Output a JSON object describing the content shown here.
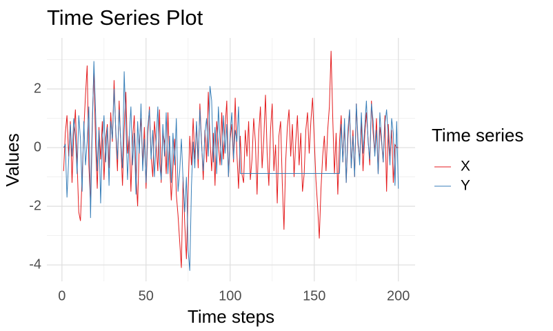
{
  "chart_data": {
    "type": "line",
    "title": "Time Series Plot",
    "x_label": "Time steps",
    "y_label": "Values",
    "legend_title": "Time series",
    "legend": "right",
    "grid": true,
    "xlim": [
      -8.95,
      209.95
    ],
    "ylim": [
      -4.56,
      3.74
    ],
    "xticks": [
      0,
      50,
      100,
      150,
      200
    ],
    "yticks": [
      -4,
      -2,
      0,
      2
    ],
    "x": [
      1,
      2,
      3,
      4,
      5,
      6,
      7,
      8,
      9,
      10,
      11,
      12,
      13,
      14,
      15,
      16,
      17,
      18,
      19,
      20,
      21,
      22,
      23,
      24,
      25,
      26,
      27,
      28,
      29,
      30,
      31,
      32,
      33,
      34,
      35,
      36,
      37,
      38,
      39,
      40,
      41,
      42,
      43,
      44,
      45,
      46,
      47,
      48,
      49,
      50,
      51,
      52,
      53,
      54,
      55,
      56,
      57,
      58,
      59,
      60,
      61,
      62,
      63,
      64,
      65,
      66,
      67,
      68,
      69,
      70,
      71,
      72,
      73,
      74,
      75,
      76,
      77,
      78,
      79,
      80,
      81,
      82,
      83,
      84,
      85,
      86,
      87,
      88,
      89,
      90,
      91,
      92,
      93,
      94,
      95,
      96,
      97,
      98,
      99,
      100,
      101,
      102,
      103,
      104,
      105,
      106,
      107,
      108,
      109,
      110,
      111,
      112,
      113,
      114,
      115,
      116,
      117,
      118,
      119,
      120,
      121,
      122,
      123,
      124,
      125,
      126,
      127,
      128,
      129,
      130,
      131,
      132,
      133,
      134,
      135,
      136,
      137,
      138,
      139,
      140,
      141,
      142,
      143,
      144,
      145,
      146,
      147,
      148,
      149,
      150,
      151,
      152,
      153,
      154,
      155,
      156,
      157,
      158,
      159,
      160,
      161,
      162,
      163,
      164,
      165,
      166,
      167,
      168,
      169,
      170,
      171,
      172,
      173,
      174,
      175,
      176,
      177,
      178,
      179,
      180,
      181,
      182,
      183,
      184,
      185,
      186,
      187,
      188,
      189,
      190,
      191,
      192,
      193,
      194,
      195,
      196,
      197,
      198,
      199,
      200
    ],
    "series": [
      {
        "name": "X",
        "color": "#e41a1c",
        "values": [
          -0.8,
          0.5,
          1.1,
          -0.3,
          0.9,
          -1.2,
          0.4,
          1.3,
          -0.5,
          -2.2,
          -2.5,
          -1.0,
          0.6,
          1.8,
          2.8,
          -0.6,
          -1.9,
          0.8,
          2.7,
          0.1,
          -1.4,
          0.7,
          -0.4,
          0.9,
          -1.1,
          0.3,
          0.8,
          -0.7,
          1.2,
          0.2,
          2.3,
          0.5,
          -0.8,
          1.6,
          0.1,
          -1.3,
          0.6,
          1.9,
          -0.2,
          0.4,
          -1.5,
          0.3,
          1.1,
          -0.9,
          -2.0,
          0.2,
          1.0,
          -0.6,
          0.7,
          -1.4,
          0.4,
          1.4,
          -0.3,
          -1.0,
          0.9,
          0.1,
          -0.8,
          1.3,
          -1.2,
          0.5,
          0.2,
          -0.9,
          1.2,
          -0.5,
          -1.8,
          -0.7,
          0.3,
          -1.6,
          -2.3,
          -3.2,
          -4.1,
          -1.0,
          -2.6,
          -3.8,
          -1.5,
          0.4,
          -0.6,
          1.0,
          -0.4,
          0.8,
          -0.7,
          1.5,
          0.2,
          -1.1,
          0.6,
          -0.5,
          1.9,
          0.3,
          -0.8,
          0.5,
          -1.3,
          0.9,
          0.1,
          -0.6,
          1.2,
          -0.4,
          0.7,
          1.6,
          -1.0,
          0.3,
          0.8,
          -0.5,
          1.7,
          -0.2,
          -1.4,
          0.4,
          -0.9,
          -1.2,
          0.6,
          -0.3,
          0.9,
          -1.1,
          -0.4,
          1.0,
          0.2,
          -1.6,
          0.5,
          1.4,
          -0.7,
          0.3,
          1.8,
          -0.2,
          -1.3,
          0.6,
          1.5,
          -0.8,
          0.1,
          -1.9,
          0.4,
          0.9,
          -1.2,
          -2.8,
          -0.5,
          0.7,
          1.3,
          -0.3,
          0.8,
          -1.0,
          0.2,
          1.1,
          -0.6,
          0.5,
          -1.5,
          -0.9,
          0.6,
          1.2,
          -0.2,
          0.9,
          1.7,
          0.3,
          -1.1,
          -2.0,
          -3.1,
          -1.4,
          -0.3,
          0.4,
          -0.8,
          0.6,
          1.4,
          3.3,
          1.0,
          -0.9,
          0.5,
          -1.6,
          0.2,
          1.1,
          -0.5,
          0.8,
          -1.2,
          0.3,
          1.3,
          -0.7,
          0.6,
          -1.0,
          1.5,
          0.1,
          -0.4,
          0.9,
          -0.8,
          0.4,
          1.2,
          0.3,
          -0.6,
          1.6,
          0.5,
          -0.2,
          1.0,
          -0.9,
          0.7,
          0.2,
          -0.5,
          1.1,
          -1.5,
          0.8,
          -0.3,
          0.6,
          -1.2,
          0.1,
          0.0,
          0.0
        ]
      },
      {
        "name": "Y",
        "color": "#377eb8",
        "values": [
          0.0,
          0.1,
          -1.7,
          -0.4,
          0.8,
          -0.3,
          1.0,
          0.4,
          -0.9,
          1.1,
          0.3,
          -1.5,
          0.9,
          -0.6,
          0.2,
          1.4,
          -2.4,
          0.5,
          2.95,
          1.2,
          -0.8,
          0.6,
          -1.9,
          0.2,
          1.1,
          -0.5,
          0.7,
          -1.3,
          0.9,
          0.3,
          2.0,
          0.6,
          -0.4,
          1.3,
          0.2,
          -0.7,
          2.6,
          0.8,
          -1.1,
          0.4,
          1.4,
          -0.6,
          0.5,
          -1.6,
          0.9,
          -0.2,
          1.5,
          -0.8,
          0.3,
          -1.2,
          0.7,
          1.3,
          -0.4,
          0.6,
          -1.0,
          0.2,
          1.4,
          -0.5,
          -1.1,
          0.8,
          -0.3,
          1.2,
          -0.9,
          0.4,
          -1.2,
          0.5,
          -0.6,
          1.0,
          -1.5,
          -0.8,
          0.3,
          -1.1,
          -2.2,
          -1.0,
          -3.5,
          -4.2,
          -1.3,
          0.2,
          -0.7,
          0.9,
          -0.4,
          1.3,
          0.1,
          -0.8,
          0.5,
          1.0,
          -0.3,
          2.1,
          1.6,
          -0.5,
          0.7,
          -0.9,
          1.4,
          0.2,
          -0.6,
          1.1,
          -0.2,
          0.8,
          -1.0,
          0.5,
          1.2,
          -0.4,
          0.6,
          0.2,
          1.4,
          -0.88,
          -0.88,
          -0.88,
          -0.88,
          -0.88,
          -0.88,
          -0.88,
          -0.88,
          -0.88,
          -0.88,
          -0.88,
          -0.88,
          -0.88,
          -0.88,
          -0.88,
          -0.88,
          -0.88,
          -0.88,
          -0.88,
          -0.88,
          -0.88,
          -0.88,
          -0.88,
          -0.88,
          -0.88,
          -0.88,
          -0.88,
          -0.88,
          -0.88,
          -0.88,
          -0.88,
          -0.88,
          -0.88,
          -0.88,
          -0.88,
          -0.88,
          -0.88,
          -0.88,
          -0.88,
          -0.88,
          -0.88,
          -0.88,
          -0.88,
          -0.88,
          -0.88,
          -0.88,
          -0.88,
          -0.88,
          -0.88,
          -0.88,
          -0.88,
          -0.88,
          -0.88,
          -0.88,
          -0.88,
          -0.88,
          -0.88,
          -0.88,
          -0.88,
          -0.88,
          0.8,
          -0.5,
          1.0,
          -1.2,
          0.6,
          1.3,
          -0.7,
          0.4,
          -1.0,
          1.5,
          0.3,
          -0.6,
          1.2,
          -0.2,
          0.7,
          1.6,
          0.2,
          -0.4,
          1.5,
          0.9,
          -0.3,
          0.6,
          -0.9,
          1.2,
          0.3,
          -0.5,
          0.8,
          1.3,
          0.4,
          -0.6,
          1.0,
          0.5,
          -1.3,
          0.9,
          -1.4
        ]
      }
    ]
  }
}
